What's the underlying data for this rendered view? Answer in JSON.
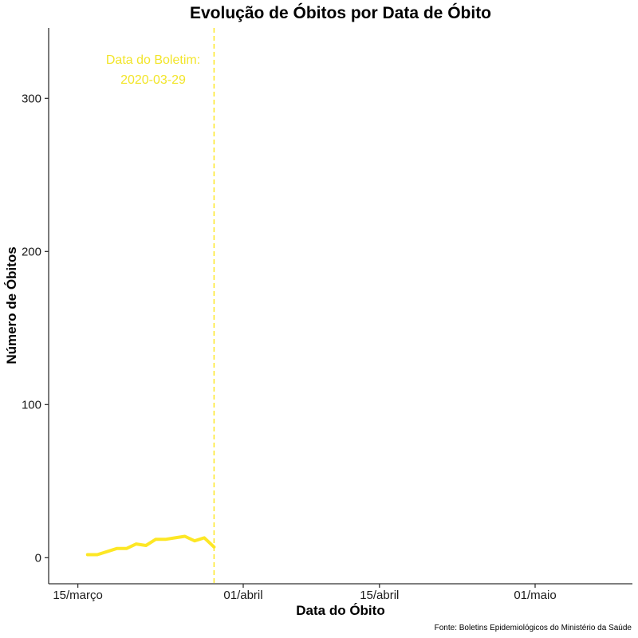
{
  "chart_data": {
    "type": "line",
    "title": "Evolução de Óbitos por Data de Óbito",
    "xlabel": "Data do Óbito",
    "ylabel": "Número de Óbitos",
    "caption": "Fonte: Boletins Epidemiológicos do Ministério da Saúde",
    "x_ticks": [
      {
        "date": "2020-03-15",
        "label": "15/março"
      },
      {
        "date": "2020-04-01",
        "label": "01/abril"
      },
      {
        "date": "2020-04-15",
        "label": "15/abril"
      },
      {
        "date": "2020-05-01",
        "label": "01/maio"
      }
    ],
    "y_ticks": [
      0,
      100,
      200,
      300
    ],
    "xlim": [
      "2020-03-12",
      "2020-05-11"
    ],
    "ylim": [
      -17,
      346
    ],
    "grid": false,
    "series": [
      {
        "color": "#FDE725",
        "points": [
          {
            "x": "2020-03-16",
            "y": 2
          },
          {
            "x": "2020-03-17",
            "y": 2
          },
          {
            "x": "2020-03-18",
            "y": 4
          },
          {
            "x": "2020-03-19",
            "y": 6
          },
          {
            "x": "2020-03-20",
            "y": 6
          },
          {
            "x": "2020-03-21",
            "y": 9
          },
          {
            "x": "2020-03-22",
            "y": 8
          },
          {
            "x": "2020-03-23",
            "y": 12
          },
          {
            "x": "2020-03-24",
            "y": 12
          },
          {
            "x": "2020-03-25",
            "y": 13
          },
          {
            "x": "2020-03-26",
            "y": 14
          },
          {
            "x": "2020-03-27",
            "y": 11
          },
          {
            "x": "2020-03-28",
            "y": 13
          },
          {
            "x": "2020-03-29",
            "y": 7
          }
        ]
      }
    ],
    "reference_line": {
      "x": "2020-03-29",
      "style": "dashed",
      "color": "#FDE725",
      "label_line1": "Data do Boletim:",
      "label_line2": "2020-03-29"
    }
  }
}
